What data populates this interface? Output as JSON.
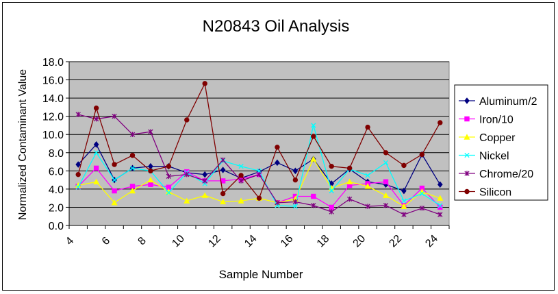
{
  "chart_data": {
    "type": "line",
    "title": "N20843 Oil Analysis",
    "xlabel": "Sample Number",
    "ylabel": "Normalized Contaminant Value",
    "xlim": [
      4,
      25
    ],
    "ylim": [
      0,
      18
    ],
    "x_ticks": [
      "4",
      "6",
      "8",
      "10",
      "12",
      "14",
      "16",
      "18",
      "20",
      "22",
      "24"
    ],
    "y_ticks": [
      "0.0",
      "2.0",
      "4.0",
      "6.0",
      "8.0",
      "10.0",
      "12.0",
      "14.0",
      "16.0",
      "18.0"
    ],
    "grid": "horizontal",
    "legend_position": "right",
    "plot_background": "#c0c0c0",
    "x": [
      4.5,
      5.5,
      6.5,
      7.5,
      8.5,
      9.5,
      10.5,
      11.5,
      12.5,
      13.5,
      14.5,
      15.5,
      16.5,
      17.5,
      18.5,
      19.5,
      20.5,
      21.5,
      22.5,
      23.5,
      24.5
    ],
    "series": [
      {
        "name": "Aluminum/2",
        "color": "#000080",
        "marker": "diamond",
        "values": [
          6.7,
          8.9,
          5.0,
          6.3,
          6.5,
          6.5,
          5.8,
          5.6,
          6.1,
          5.2,
          5.9,
          6.9,
          6.0,
          7.3,
          4.6,
          6.2,
          4.8,
          4.5,
          3.8,
          7.8,
          4.5
        ]
      },
      {
        "name": "Iron/10",
        "color": "#ff00ff",
        "marker": "square",
        "values": [
          4.3,
          6.3,
          3.8,
          4.3,
          4.5,
          4.2,
          5.9,
          4.9,
          4.9,
          5.1,
          5.6,
          2.5,
          3.2,
          3.2,
          2.0,
          4.4,
          4.6,
          4.8,
          2.2,
          4.1,
          2.0
        ]
      },
      {
        "name": "Copper",
        "color": "#ffff00",
        "marker": "triangle",
        "values": [
          4.4,
          4.8,
          2.5,
          3.8,
          5.0,
          3.7,
          2.7,
          3.3,
          2.6,
          2.7,
          3.0,
          2.5,
          2.9,
          7.3,
          4.1,
          4.8,
          4.3,
          3.3,
          2.1,
          3.7,
          3.0
        ]
      },
      {
        "name": "Nickel",
        "color": "#00ffff",
        "marker": "x",
        "values": [
          4.2,
          8.0,
          5.0,
          6.3,
          6.0,
          3.6,
          5.8,
          4.6,
          7.1,
          6.5,
          6.0,
          2.2,
          2.1,
          11.0,
          3.8,
          6.2,
          5.5,
          6.9,
          2.7,
          3.5,
          2.2
        ]
      },
      {
        "name": "Chrome/20",
        "color": "#800080",
        "marker": "star",
        "values": [
          12.2,
          11.7,
          12.0,
          10.0,
          10.3,
          5.4,
          5.6,
          4.9,
          7.2,
          4.9,
          5.6,
          2.5,
          2.6,
          2.2,
          1.5,
          2.9,
          2.1,
          2.2,
          1.2,
          1.9,
          1.2
        ]
      },
      {
        "name": "Silicon",
        "color": "#800000",
        "marker": "circle",
        "values": [
          5.6,
          12.9,
          6.7,
          7.7,
          6.0,
          6.5,
          11.6,
          15.6,
          3.5,
          5.5,
          3.0,
          8.6,
          5.0,
          9.8,
          6.5,
          6.3,
          10.8,
          8.0,
          6.6,
          7.8,
          11.3
        ]
      }
    ]
  }
}
